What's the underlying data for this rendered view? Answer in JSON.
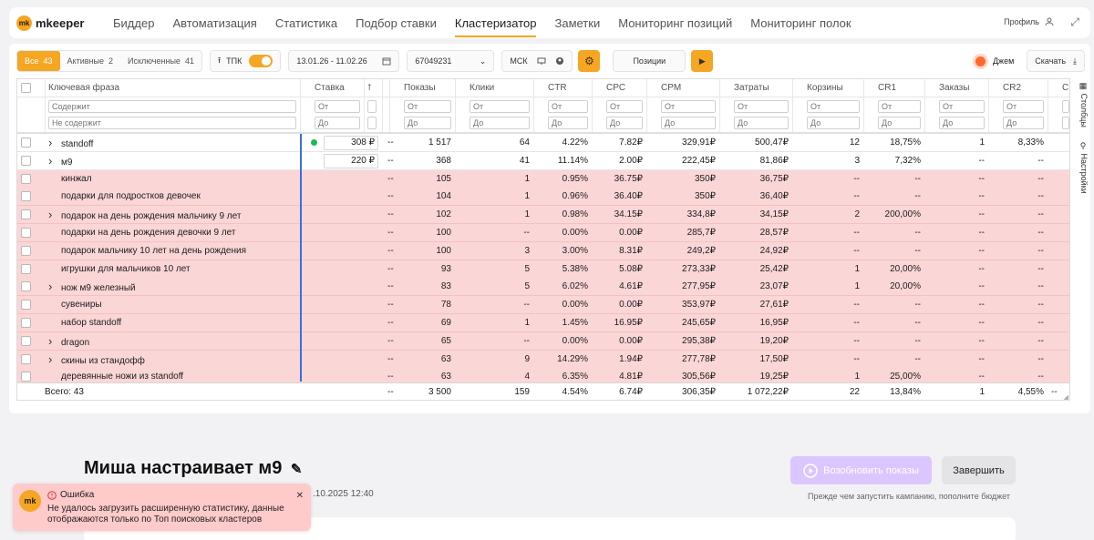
{
  "logo": {
    "mark": "mk",
    "name": "mkeeper"
  },
  "nav": [
    "Биддер",
    "Автоматизация",
    "Статистика",
    "Подбор ставки",
    "Кластеризатор",
    "Заметки",
    "Мониторинг позиций",
    "Мониторинг полок"
  ],
  "nav_active": 4,
  "header": {
    "profile_label": "Профиль"
  },
  "toolbar": {
    "seg": [
      {
        "label": "Все",
        "count": "43"
      },
      {
        "label": "Активные",
        "count": "2"
      },
      {
        "label": "Исключенные",
        "count": "41"
      }
    ],
    "tpk_label": "ТПК",
    "date_range": "13.01.26 - 11.02.26",
    "campaign_id": "67049231",
    "region": "МСК",
    "positions_label": "Позиции",
    "jam_label": "Джем",
    "download_label": "Скачать"
  },
  "table": {
    "columns": [
      "Ключевая фраза",
      "Ставка",
      "",
      "Показы",
      "Клики",
      "CTR",
      "CPC",
      "CPM",
      "Затраты",
      "Корзины",
      "CR1",
      "Заказы",
      "CR2",
      "C"
    ],
    "filter_contains": "Содержит",
    "filter_not_contains": "Не содержит",
    "filter_from": "От",
    "filter_to": "До",
    "rows": [
      {
        "phrase": "standoff",
        "expand": true,
        "active": true,
        "bid": "308",
        "dot": true,
        "dash": "--",
        "shows": "1 517",
        "clicks": "64",
        "ctr": "4.22%",
        "cpc": "7.82₽",
        "cpm": "329,91₽",
        "cost": "500,47₽",
        "carts": "12",
        "cr1": "18,75%",
        "orders": "1",
        "cr2": "8,33%"
      },
      {
        "phrase": "м9",
        "expand": true,
        "active": true,
        "bid": "220",
        "dot": false,
        "dash": "--",
        "shows": "368",
        "clicks": "41",
        "ctr": "11.14%",
        "cpc": "2.00₽",
        "cpm": "222,45₽",
        "cost": "81,86₽",
        "carts": "3",
        "cr1": "7,32%",
        "orders": "--",
        "cr2": "--"
      },
      {
        "phrase": "кинжал",
        "expand": false,
        "active": false,
        "dash": "--",
        "shows": "105",
        "clicks": "1",
        "ctr": "0.95%",
        "cpc": "36.75₽",
        "cpm": "350₽",
        "cost": "36,75₽",
        "carts": "--",
        "cr1": "--",
        "orders": "--",
        "cr2": "--"
      },
      {
        "phrase": "подарки для подростков девочек",
        "expand": false,
        "active": false,
        "dash": "--",
        "shows": "104",
        "clicks": "1",
        "ctr": "0.96%",
        "cpc": "36.40₽",
        "cpm": "350₽",
        "cost": "36,40₽",
        "carts": "--",
        "cr1": "--",
        "orders": "--",
        "cr2": "--"
      },
      {
        "phrase": "подарок на день рождения мальчику 9 лет",
        "expand": true,
        "active": false,
        "dash": "--",
        "shows": "102",
        "clicks": "1",
        "ctr": "0.98%",
        "cpc": "34.15₽",
        "cpm": "334,8₽",
        "cost": "34,15₽",
        "carts": "2",
        "cr1": "200,00%",
        "orders": "--",
        "cr2": "--"
      },
      {
        "phrase": "подарки на день рождения девочки 9 лет",
        "expand": false,
        "active": false,
        "dash": "--",
        "shows": "100",
        "clicks": "--",
        "ctr": "0.00%",
        "cpc": "0.00₽",
        "cpm": "285,7₽",
        "cost": "28,57₽",
        "carts": "--",
        "cr1": "--",
        "orders": "--",
        "cr2": "--"
      },
      {
        "phrase": "подарок мальчику 10 лет на день рождения",
        "expand": false,
        "active": false,
        "dash": "--",
        "shows": "100",
        "clicks": "3",
        "ctr": "3.00%",
        "cpc": "8.31₽",
        "cpm": "249,2₽",
        "cost": "24,92₽",
        "carts": "--",
        "cr1": "--",
        "orders": "--",
        "cr2": "--"
      },
      {
        "phrase": "игрушки для мальчиков 10 лет",
        "expand": false,
        "active": false,
        "dash": "--",
        "shows": "93",
        "clicks": "5",
        "ctr": "5.38%",
        "cpc": "5.08₽",
        "cpm": "273,33₽",
        "cost": "25,42₽",
        "carts": "1",
        "cr1": "20,00%",
        "orders": "--",
        "cr2": "--"
      },
      {
        "phrase": "нож м9 железный",
        "expand": true,
        "active": false,
        "dash": "--",
        "shows": "83",
        "clicks": "5",
        "ctr": "6.02%",
        "cpc": "4.61₽",
        "cpm": "277,95₽",
        "cost": "23,07₽",
        "carts": "1",
        "cr1": "20,00%",
        "orders": "--",
        "cr2": "--"
      },
      {
        "phrase": "сувениры",
        "expand": false,
        "active": false,
        "dash": "--",
        "shows": "78",
        "clicks": "--",
        "ctr": "0.00%",
        "cpc": "0.00₽",
        "cpm": "353,97₽",
        "cost": "27,61₽",
        "carts": "--",
        "cr1": "--",
        "orders": "--",
        "cr2": "--"
      },
      {
        "phrase": "набор standoff",
        "expand": false,
        "active": false,
        "dash": "--",
        "shows": "69",
        "clicks": "1",
        "ctr": "1.45%",
        "cpc": "16.95₽",
        "cpm": "245,65₽",
        "cost": "16,95₽",
        "carts": "--",
        "cr1": "--",
        "orders": "--",
        "cr2": "--"
      },
      {
        "phrase": "dragon",
        "expand": true,
        "active": false,
        "dash": "--",
        "shows": "65",
        "clicks": "--",
        "ctr": "0.00%",
        "cpc": "0.00₽",
        "cpm": "295,38₽",
        "cost": "19,20₽",
        "carts": "--",
        "cr1": "--",
        "orders": "--",
        "cr2": "--"
      },
      {
        "phrase": "скины из стандофф",
        "expand": true,
        "active": false,
        "dash": "--",
        "shows": "63",
        "clicks": "9",
        "ctr": "14.29%",
        "cpc": "1.94₽",
        "cpm": "277,78₽",
        "cost": "17,50₽",
        "carts": "--",
        "cr1": "--",
        "orders": "--",
        "cr2": "--"
      },
      {
        "phrase": "деревянные ножи из standoff",
        "expand": false,
        "active": false,
        "dash": "--",
        "shows": "63",
        "clicks": "4",
        "ctr": "6.35%",
        "cpc": "4.81₽",
        "cpm": "305,56₽",
        "cost": "19,25₽",
        "carts": "1",
        "cr1": "25,00%",
        "orders": "--",
        "cr2": "--"
      }
    ],
    "total": {
      "label": "Всего: 43",
      "dash": "--",
      "shows": "3 500",
      "clicks": "159",
      "ctr": "4.54%",
      "cpc": "6.74₽",
      "cpm": "306,35₽",
      "cost": "1 072,22₽",
      "carts": "22",
      "cr1": "13,84%",
      "orders": "1",
      "cr2": "4,55%",
      "last": "--"
    },
    "side_columns": "Столбцы",
    "side_settings": "Настройки"
  },
  "campaign": {
    "title": "Миша настраивает м9",
    "date": ".10.2025 12:40",
    "resume_label": "Возобновить показы",
    "finish_label": "Завершить",
    "hint": "Прежде чем запустить кампанию, пополните бюджет"
  },
  "toast": {
    "logo": "mk",
    "title": "Ошибка",
    "message": "Не удалось загрузить расширенную статистику, данные отображаются только по Топ поисковых кластеров"
  }
}
